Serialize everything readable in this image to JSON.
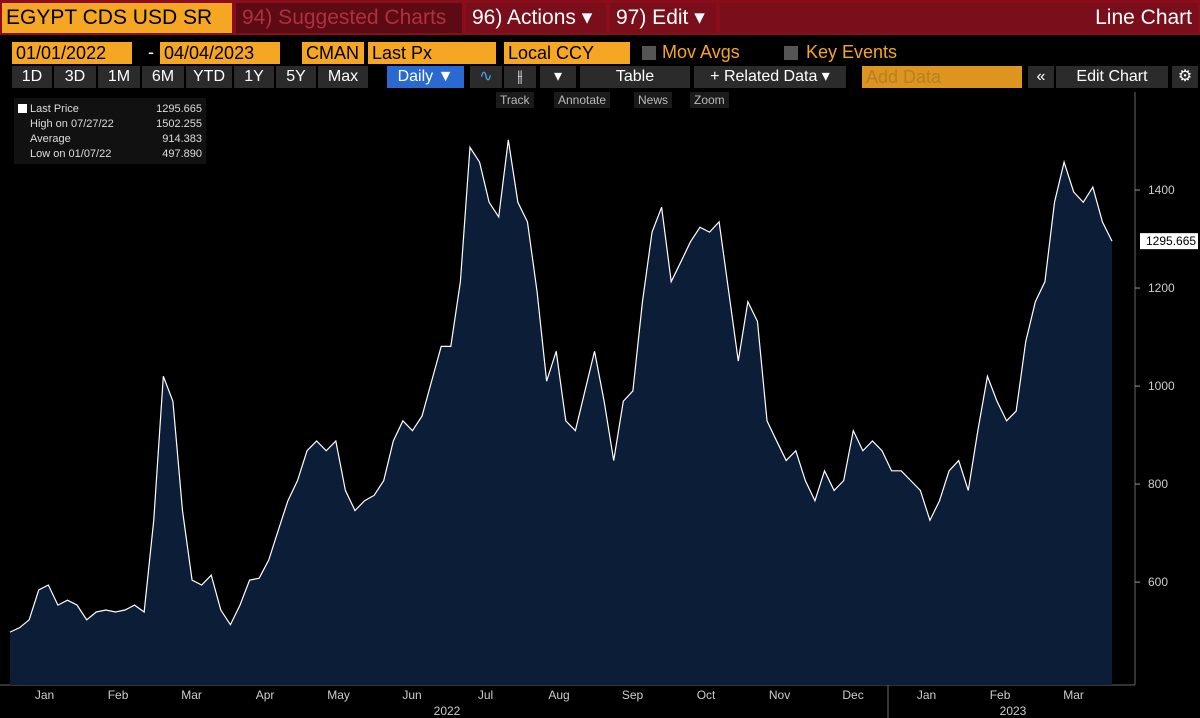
{
  "toolbar": {
    "security": "EGYPT CDS USD SR",
    "suggested": "94) Suggested Charts",
    "actions": "96) Actions ▾",
    "edit": "97) Edit ▾",
    "chart_kind": "Line Chart",
    "start_date": "01/01/2022",
    "dash": "-",
    "end_date": "04/04/2023",
    "source": "CMAN",
    "field": "Last Px",
    "currency": "Local CCY",
    "mov_avgs": "Mov Avgs",
    "key_events": "Key Events",
    "periods": [
      "1D",
      "3D",
      "1M",
      "6M",
      "YTD",
      "1Y",
      "5Y",
      "Max"
    ],
    "frequency": "Daily ▼",
    "table": "Table",
    "related": "+ Related Data ▾",
    "add_data": "Add Data",
    "edit_chart": "Edit Chart",
    "tools": [
      "Track",
      "Annotate",
      "News",
      "Zoom"
    ]
  },
  "chart_data": {
    "type": "line",
    "color": "#ffffff",
    "fill": "#0c1d38",
    "stats": [
      {
        "label": "Last Price",
        "text": "1295.665"
      },
      {
        "label": "High on 07/27/22",
        "text": "1502.255"
      },
      {
        "label": "Average",
        "text": "914.383"
      },
      {
        "label": "Low on 01/07/22",
        "text": "497.890"
      }
    ],
    "values": [
      497.89,
      507,
      523,
      584,
      594,
      553,
      563,
      553,
      523,
      539,
      543,
      539,
      543,
      553,
      539,
      726,
      1020,
      969,
      746,
      604,
      594,
      614,
      543,
      513,
      553,
      604,
      608,
      645,
      706,
      766,
      807,
      868,
      888,
      868,
      888,
      787,
      746,
      766,
      777,
      807,
      888,
      929,
      909,
      939,
      1010,
      1081,
      1081,
      1213,
      1487,
      1457,
      1375,
      1345,
      1502.255,
      1375,
      1335,
      1193,
      1010,
      1071,
      929,
      909,
      990,
      1071,
      969,
      848,
      969,
      990,
      1172,
      1314,
      1365,
      1213,
      1253,
      1294,
      1324,
      1314,
      1335,
      1193,
      1051,
      1172,
      1132,
      929,
      888,
      848,
      868,
      807,
      766,
      827,
      787,
      807,
      909,
      868,
      888,
      868,
      827,
      827,
      807,
      787,
      726,
      766,
      827,
      848,
      787,
      909,
      1020,
      969,
      929,
      949,
      1091,
      1172,
      1213,
      1375,
      1457,
      1396,
      1375,
      1406,
      1335,
      1295.665
    ],
    "last_label": "1295.665",
    "x_labels": [
      "Jan",
      "Feb",
      "Mar",
      "Apr",
      "May",
      "Jun",
      "Jul",
      "Aug",
      "Sep",
      "Oct",
      "Nov",
      "Dec",
      "Jan",
      "Feb",
      "Mar"
    ],
    "year_labels": [
      "2022",
      "2023"
    ],
    "ylim": [
      390,
      1600
    ],
    "yticks": [
      600,
      800,
      1000,
      1200,
      1400
    ]
  }
}
